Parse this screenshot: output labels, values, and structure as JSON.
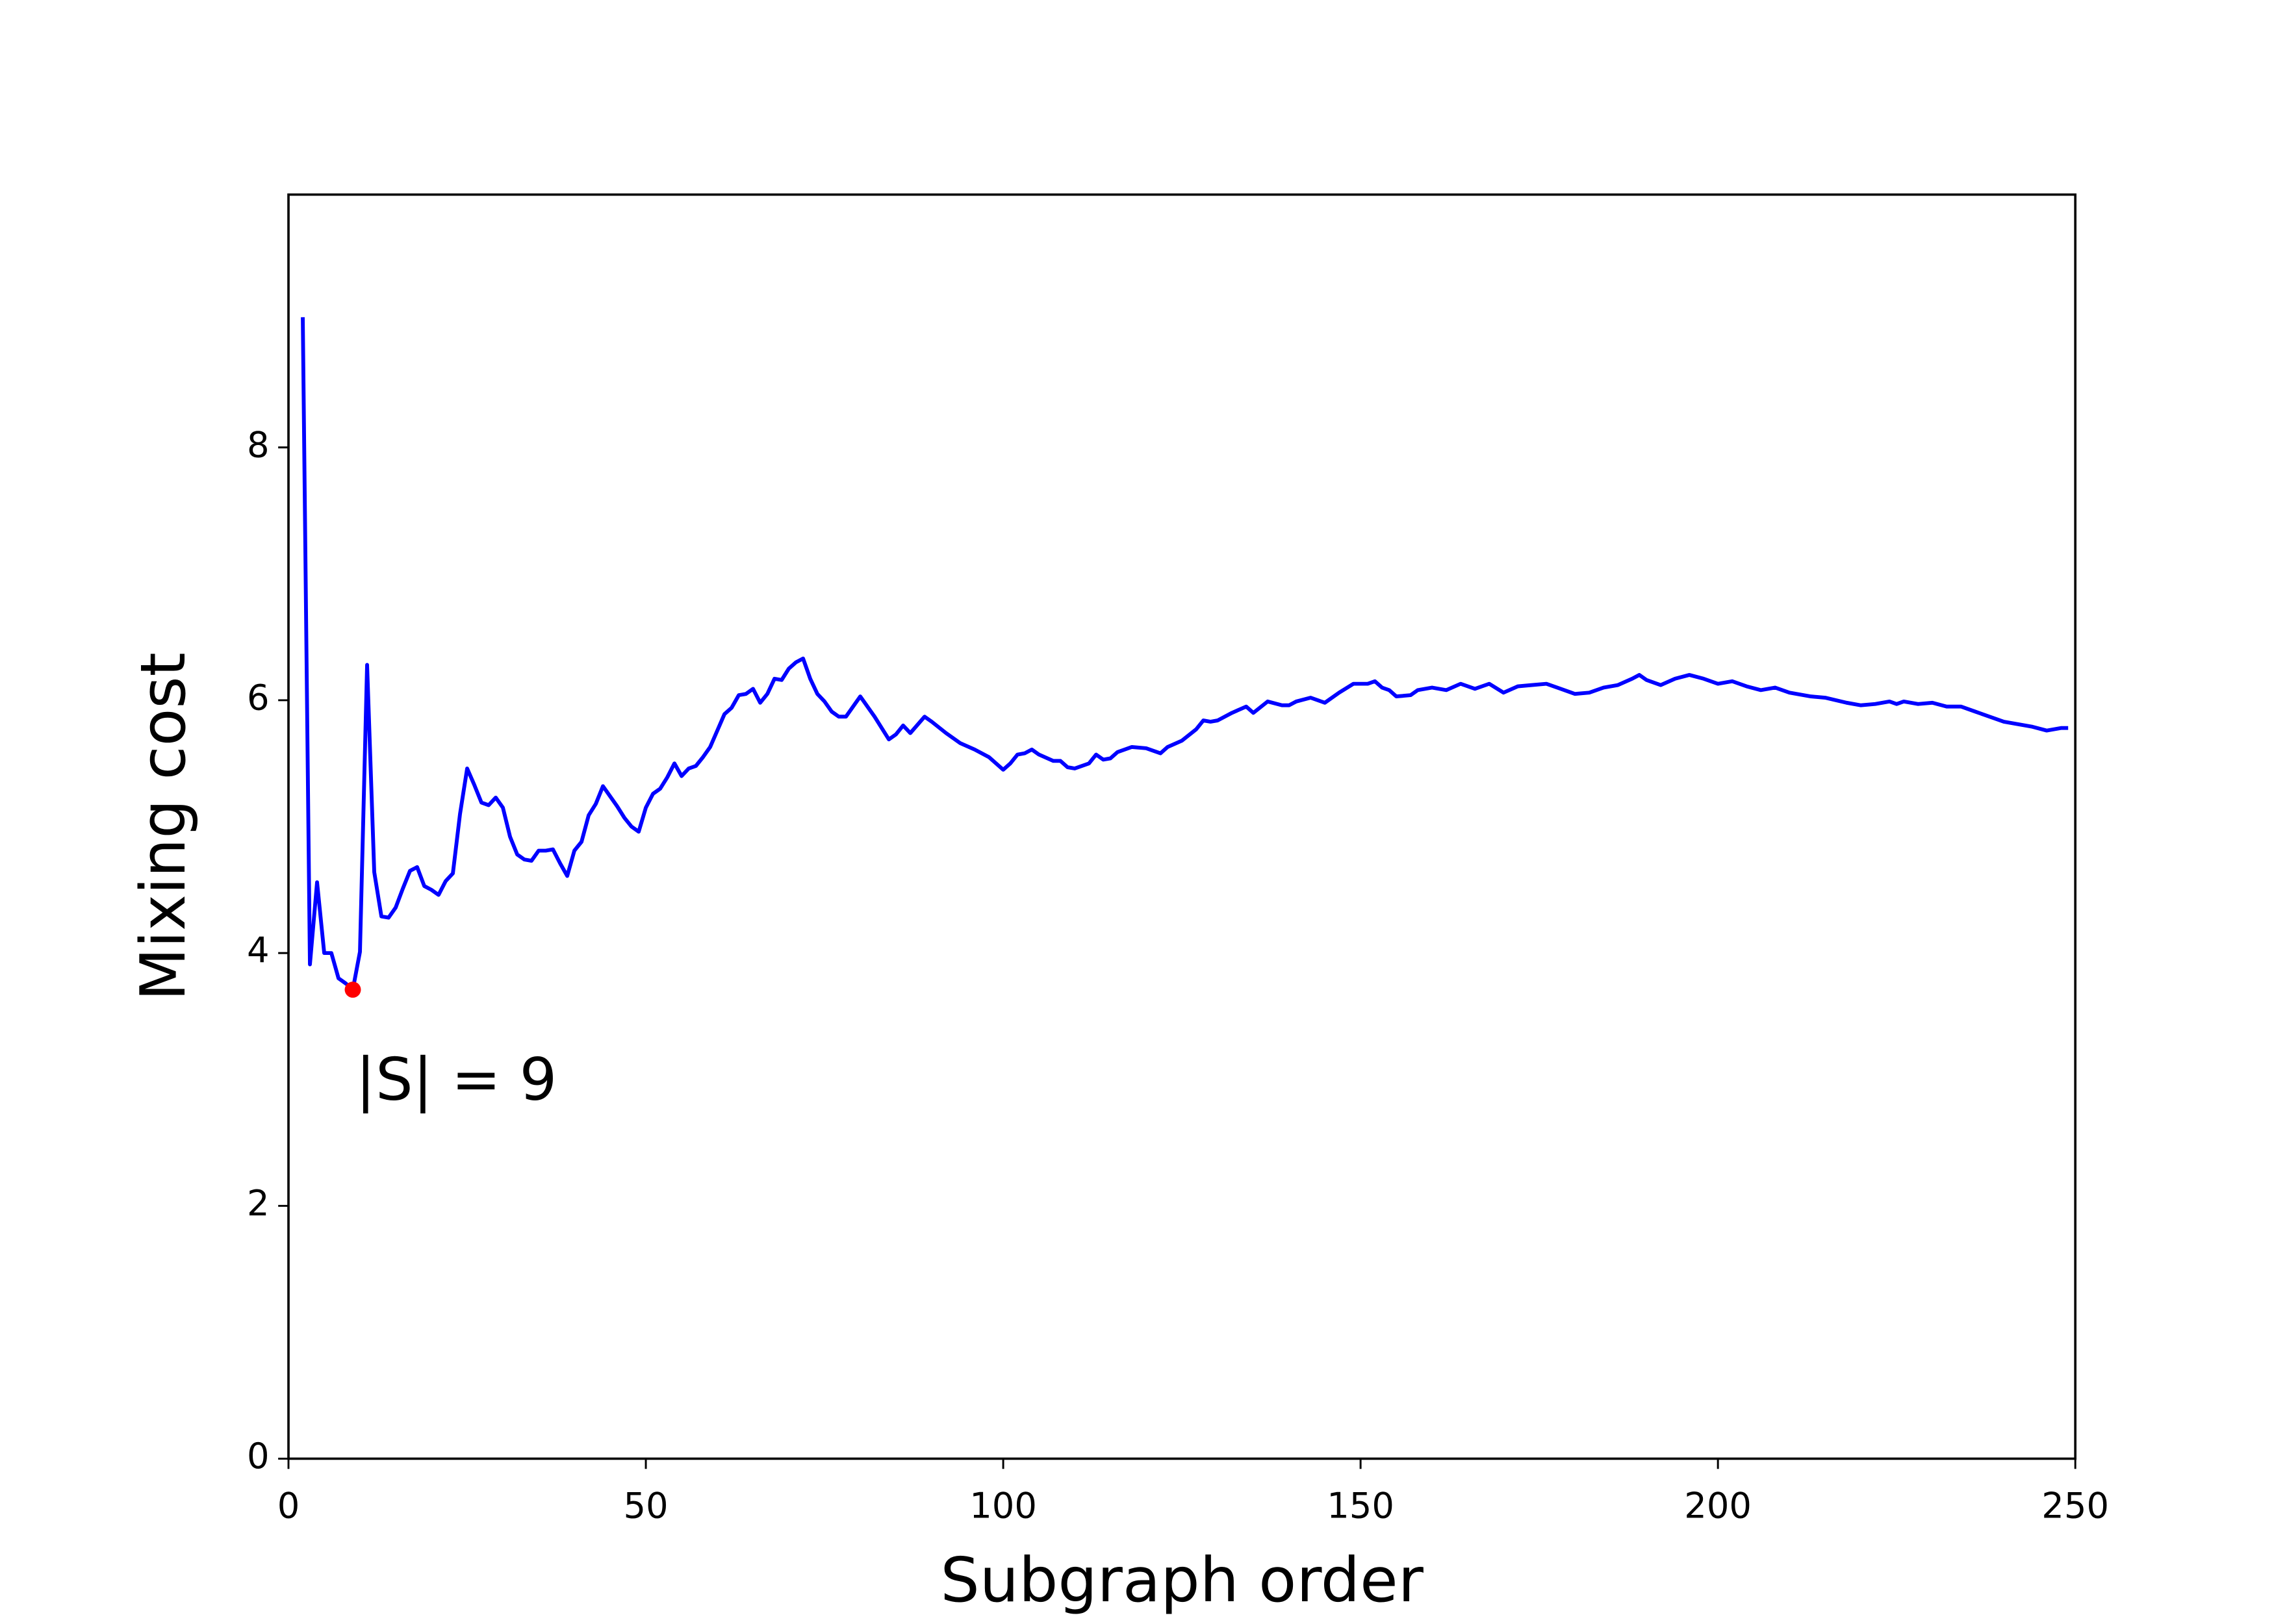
{
  "chart_data": {
    "type": "line",
    "xlabel": "Subgraph order",
    "ylabel": "Mixing cost",
    "annotation": "|S| = 9",
    "x": [
      2,
      3,
      4,
      5,
      6,
      7,
      8,
      9,
      10,
      11,
      12,
      13,
      14,
      15,
      16,
      17,
      18,
      19,
      20,
      21,
      22,
      23,
      24,
      25,
      26,
      27,
      28,
      29,
      30,
      31,
      32,
      33,
      34,
      35,
      36,
      37,
      38,
      39,
      40,
      41,
      42,
      43,
      44,
      45,
      46,
      47,
      48,
      49,
      50,
      51,
      52,
      53,
      54,
      55,
      56,
      57,
      58,
      59,
      60,
      61,
      62,
      63,
      64,
      65,
      66,
      67,
      68,
      69,
      70,
      71,
      72,
      73,
      74,
      75,
      76,
      77,
      78,
      80,
      82,
      84,
      85,
      86,
      87,
      89,
      90,
      92,
      94,
      96,
      98,
      99,
      100,
      101,
      102,
      103,
      104,
      105,
      107,
      108,
      109,
      110,
      112,
      113,
      114,
      115,
      116,
      118,
      120,
      122,
      123,
      125,
      127,
      128,
      129,
      130,
      132,
      134,
      135,
      137,
      139,
      140,
      141,
      143,
      145,
      147,
      149,
      151,
      152,
      153,
      154,
      155,
      157,
      158,
      160,
      162,
      164,
      166,
      168,
      170,
      172,
      174,
      176,
      178,
      180,
      182,
      184,
      186,
      188,
      189,
      190,
      192,
      194,
      196,
      198,
      200,
      202,
      204,
      206,
      208,
      210,
      213,
      215,
      218,
      220,
      222,
      224,
      225,
      226,
      228,
      230,
      232,
      234,
      236,
      238,
      240,
      242,
      244,
      246,
      248,
      249
    ],
    "series": [
      {
        "color": "#0000ff",
        "values": [
          9.03,
          3.91,
          4.56,
          4.0,
          4.0,
          3.8,
          3.76,
          3.71,
          4.01,
          6.28,
          4.64,
          4.29,
          4.28,
          4.36,
          4.51,
          4.65,
          4.68,
          4.53,
          4.5,
          4.46,
          4.57,
          4.63,
          5.1,
          5.46,
          5.33,
          5.19,
          5.17,
          5.23,
          5.15,
          4.92,
          4.78,
          4.74,
          4.73,
          4.81,
          4.81,
          4.82,
          4.71,
          4.61,
          4.81,
          4.88,
          5.09,
          5.18,
          5.32,
          5.24,
          5.16,
          5.07,
          5.0,
          4.96,
          5.15,
          5.26,
          5.3,
          5.39,
          5.5,
          5.4,
          5.46,
          5.48,
          5.55,
          5.63,
          5.76,
          5.89,
          5.94,
          6.04,
          6.05,
          6.09,
          5.98,
          6.05,
          6.17,
          6.16,
          6.25,
          6.3,
          6.33,
          6.17,
          6.05,
          5.99,
          5.91,
          5.87,
          5.87,
          6.03,
          5.87,
          5.69,
          5.73,
          5.8,
          5.74,
          5.87,
          5.83,
          5.74,
          5.66,
          5.61,
          5.55,
          5.5,
          5.45,
          5.5,
          5.57,
          5.58,
          5.61,
          5.57,
          5.52,
          5.52,
          5.47,
          5.46,
          5.5,
          5.57,
          5.53,
          5.54,
          5.59,
          5.63,
          5.62,
          5.58,
          5.63,
          5.68,
          5.77,
          5.84,
          5.83,
          5.84,
          5.9,
          5.95,
          5.9,
          5.99,
          5.96,
          5.96,
          5.99,
          6.02,
          5.98,
          6.06,
          6.13,
          6.13,
          6.15,
          6.1,
          6.08,
          6.03,
          6.04,
          6.08,
          6.1,
          6.08,
          6.13,
          6.09,
          6.13,
          6.06,
          6.11,
          6.12,
          6.13,
          6.09,
          6.05,
          6.06,
          6.1,
          6.12,
          6.17,
          6.2,
          6.16,
          6.12,
          6.17,
          6.2,
          6.17,
          6.13,
          6.15,
          6.11,
          6.08,
          6.1,
          6.06,
          6.03,
          6.02,
          5.98,
          5.96,
          5.97,
          5.99,
          5.97,
          5.99,
          5.97,
          5.98,
          5.95,
          5.95,
          5.91,
          5.87,
          5.83,
          5.81,
          5.79,
          5.76,
          5.78,
          5.78
        ]
      }
    ],
    "marker": {
      "x": 9,
      "y": 3.71,
      "color": "#ff0000"
    },
    "xlim": [
      0,
      250
    ],
    "xticks": [
      0,
      50,
      100,
      150,
      200,
      250
    ],
    "ylim": [
      0,
      10
    ],
    "yticks": [
      0,
      2,
      4,
      6,
      8
    ]
  }
}
